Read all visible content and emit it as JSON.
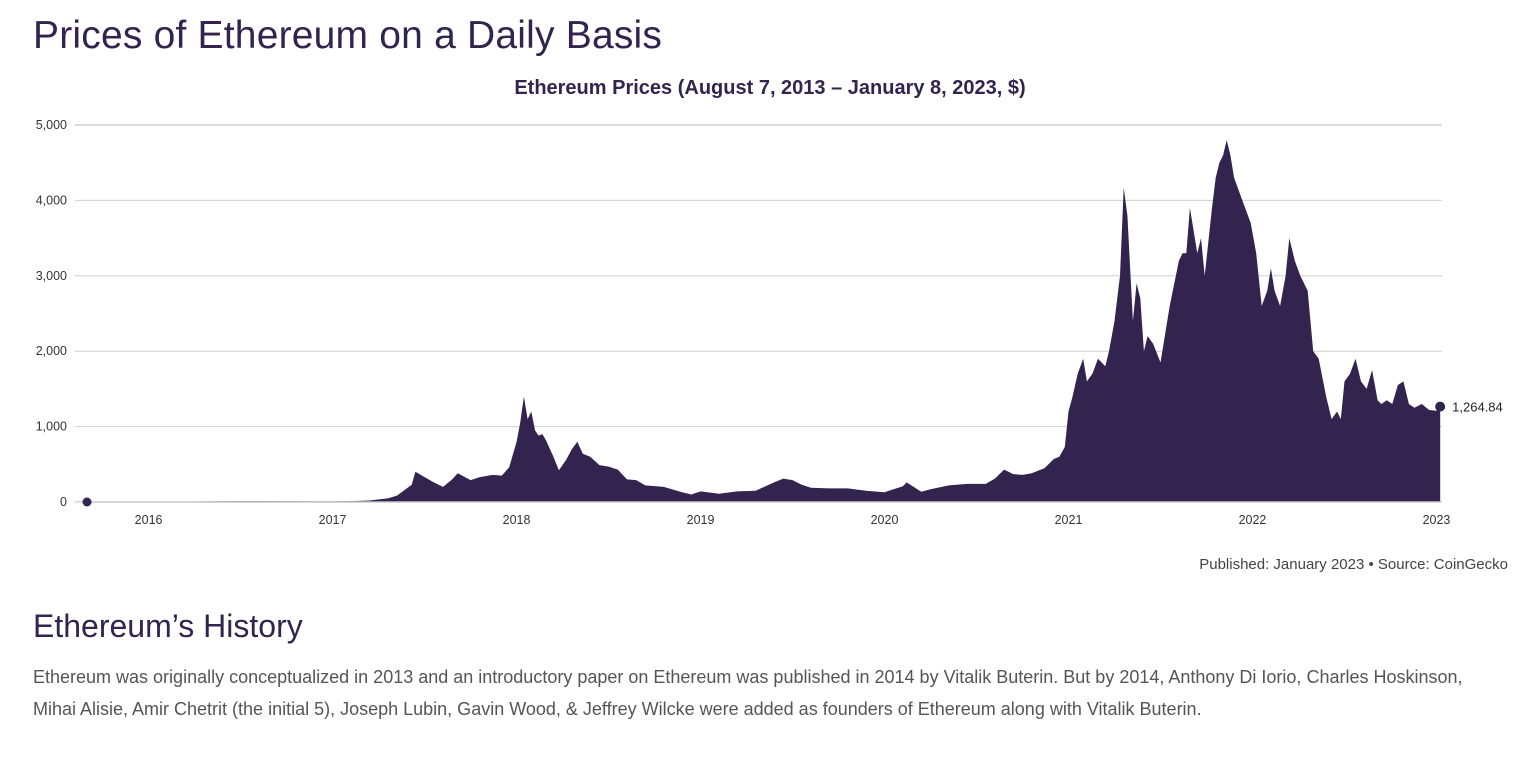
{
  "page": {
    "title": "Prices of Ethereum on a Daily Basis",
    "footnote": "Published: January 2023 • Source: CoinGecko",
    "section_title": "Ethereum’s History",
    "body": "Ethereum was originally conceptualized in 2013 and an introductory paper on Ethereum was published in 2014 by Vitalik Buterin. But by 2014, Anthony Di Iorio, Charles Hoskinson, Mihai Alisie, Amir Chetrit (the initial 5), Joseph Lubin, Gavin Wood, & Jeffrey Wilcke were added as founders of Ethereum along with Vitalik Buterin."
  },
  "colors": {
    "fill": "#33234f",
    "grid": "#d0d0d0",
    "axis": "#c8c8c8"
  },
  "chart_data": {
    "type": "area",
    "title": "Ethereum Prices (August 7, 2013 – January 8, 2023, $)",
    "xlabel": "",
    "ylabel": "",
    "ylim": [
      0,
      5000
    ],
    "xlim": [
      2015.6,
      2023.03
    ],
    "y_ticks": [
      0,
      1000,
      2000,
      3000,
      4000,
      5000
    ],
    "y_tick_labels": [
      "0",
      "1,000",
      "2,000",
      "3,000",
      "4,000",
      "5,000"
    ],
    "x_ticks": [
      2016,
      2017,
      2018,
      2019,
      2020,
      2021,
      2022,
      2023
    ],
    "x_tick_labels": [
      "2016",
      "2017",
      "2018",
      "2019",
      "2020",
      "2021",
      "2022",
      "2023"
    ],
    "grid": true,
    "end_label": "1,264.84",
    "series": [
      {
        "x": [
          2015.6,
          2015.9,
          2016.1,
          2016.3,
          2016.5,
          2016.8,
          2017.0,
          2017.12,
          2017.2,
          2017.3,
          2017.35,
          2017.43,
          2017.45,
          2017.5,
          2017.55,
          2017.6,
          2017.65,
          2017.68,
          2017.75,
          2017.8,
          2017.87,
          2017.92,
          2017.96,
          2018.0,
          2018.02,
          2018.04,
          2018.06,
          2018.08,
          2018.1,
          2018.12,
          2018.14,
          2018.16,
          2018.2,
          2018.23,
          2018.27,
          2018.3,
          2018.33,
          2018.36,
          2018.4,
          2018.45,
          2018.5,
          2018.55,
          2018.6,
          2018.65,
          2018.7,
          2018.8,
          2018.9,
          2018.95,
          2019.0,
          2019.1,
          2019.2,
          2019.3,
          2019.4,
          2019.45,
          2019.5,
          2019.55,
          2019.6,
          2019.7,
          2019.8,
          2019.9,
          2020.0,
          2020.1,
          2020.12,
          2020.2,
          2020.25,
          2020.35,
          2020.45,
          2020.55,
          2020.6,
          2020.65,
          2020.7,
          2020.75,
          2020.8,
          2020.87,
          2020.92,
          2020.95,
          2020.98,
          2021.0,
          2021.02,
          2021.05,
          2021.08,
          2021.1,
          2021.13,
          2021.16,
          2021.2,
          2021.22,
          2021.25,
          2021.28,
          2021.3,
          2021.32,
          2021.35,
          2021.37,
          2021.39,
          2021.41,
          2021.43,
          2021.46,
          2021.5,
          2021.55,
          2021.6,
          2021.62,
          2021.64,
          2021.66,
          2021.68,
          2021.7,
          2021.72,
          2021.74,
          2021.78,
          2021.8,
          2021.82,
          2021.84,
          2021.86,
          2021.88,
          2021.9,
          2021.93,
          2021.96,
          2021.99,
          2022.02,
          2022.05,
          2022.08,
          2022.1,
          2022.12,
          2022.15,
          2022.18,
          2022.2,
          2022.23,
          2022.26,
          2022.3,
          2022.33,
          2022.36,
          2022.4,
          2022.43,
          2022.46,
          2022.48,
          2022.5,
          2022.53,
          2022.56,
          2022.59,
          2022.62,
          2022.65,
          2022.68,
          2022.7,
          2022.73,
          2022.76,
          2022.79,
          2022.82,
          2022.85,
          2022.88,
          2022.92,
          2022.96,
          2023.0,
          2023.02
        ],
        "y": [
          1,
          1,
          3,
          8,
          12,
          10,
          8,
          13,
          20,
          48,
          85,
          230,
          400,
          330,
          260,
          200,
          300,
          380,
          290,
          330,
          360,
          350,
          460,
          800,
          1050,
          1400,
          1100,
          1200,
          950,
          880,
          900,
          820,
          600,
          420,
          560,
          700,
          800,
          640,
          600,
          490,
          470,
          430,
          300,
          290,
          220,
          200,
          130,
          100,
          140,
          110,
          140,
          150,
          260,
          310,
          290,
          230,
          190,
          180,
          180,
          150,
          130,
          210,
          260,
          135,
          170,
          220,
          240,
          240,
          310,
          430,
          370,
          360,
          380,
          450,
          570,
          600,
          730,
          1200,
          1380,
          1700,
          1900,
          1600,
          1700,
          1900,
          1800,
          2000,
          2400,
          3000,
          4170,
          3800,
          2400,
          2900,
          2700,
          2000,
          2200,
          2100,
          1850,
          2600,
          3200,
          3300,
          3300,
          3900,
          3600,
          3300,
          3500,
          3000,
          3900,
          4300,
          4500,
          4600,
          4800,
          4600,
          4300,
          4100,
          3900,
          3700,
          3300,
          2600,
          2800,
          3100,
          2800,
          2600,
          3000,
          3500,
          3200,
          3000,
          2800,
          2000,
          1900,
          1400,
          1100,
          1200,
          1100,
          1600,
          1700,
          1900,
          1600,
          1500,
          1750,
          1350,
          1300,
          1350,
          1300,
          1550,
          1600,
          1300,
          1250,
          1300,
          1220,
          1210,
          1264.84
        ]
      }
    ]
  }
}
